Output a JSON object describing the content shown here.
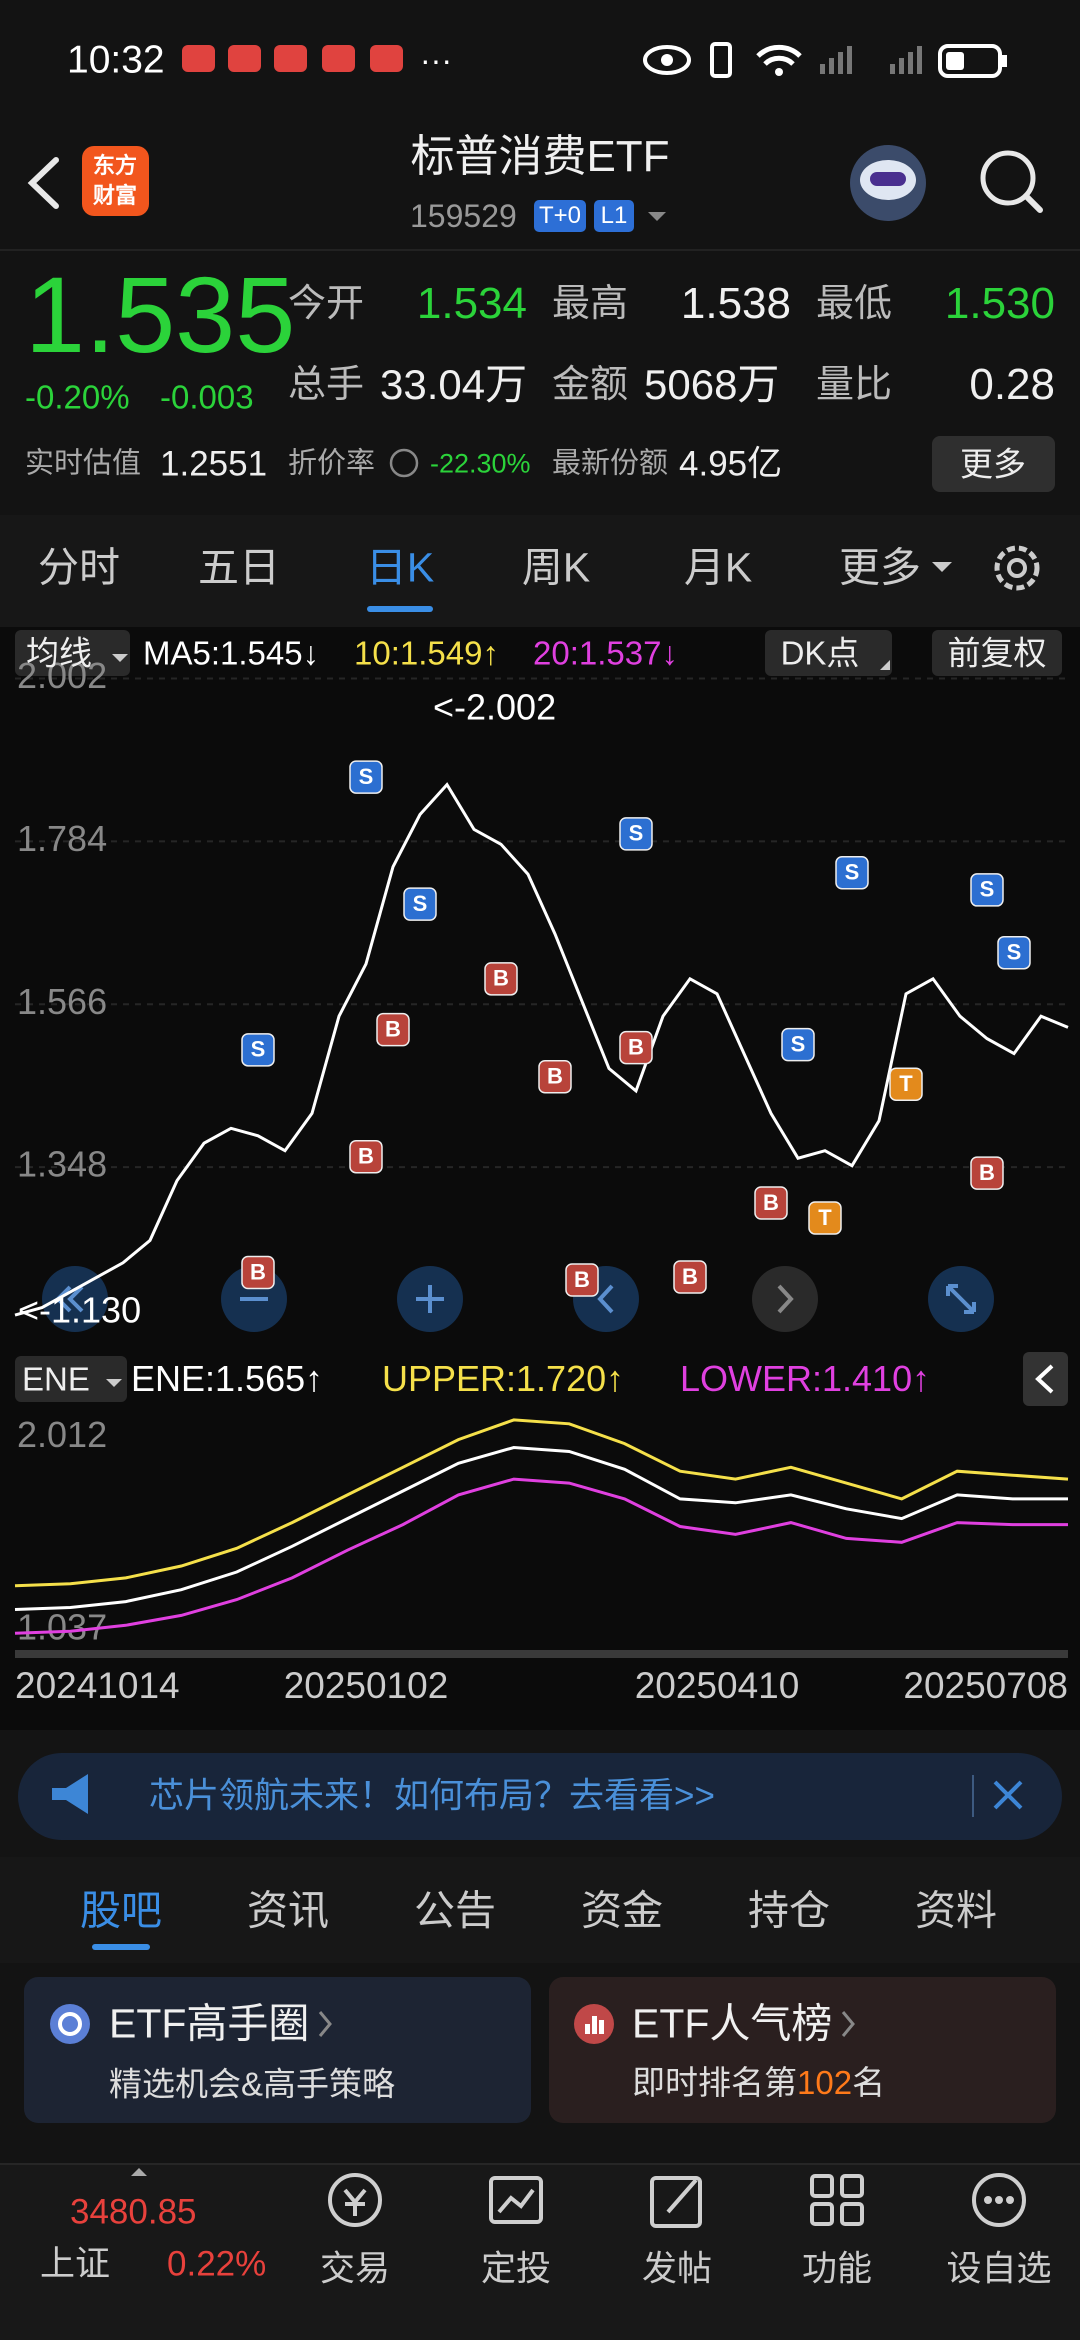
{
  "status_bar": {
    "time": "10:32",
    "more": "···"
  },
  "header": {
    "logo": [
      "东方",
      "财富"
    ],
    "title": "标普消费ETF",
    "code": "159529",
    "badges": [
      "T+0",
      "L1"
    ]
  },
  "quote": {
    "price": "1.535",
    "change_pct": "-0.20%",
    "change": "-0.003",
    "stats": [
      {
        "label": "今开",
        "value": "1.534"
      },
      {
        "label": "最高",
        "value": "1.538"
      },
      {
        "label": "最低",
        "value": "1.530"
      },
      {
        "label": "总手",
        "value": "33.04万"
      },
      {
        "label": "金额",
        "value": "5068万"
      },
      {
        "label": "量比",
        "value": "0.28"
      }
    ],
    "extra": [
      {
        "label": "实时估值",
        "value": "1.2551"
      },
      {
        "label": "折价率",
        "value": "-22.30%"
      },
      {
        "label": "最新份额",
        "value": "4.95亿"
      }
    ],
    "more_button": "更多"
  },
  "period_tabs": {
    "items": [
      "分时",
      "五日",
      "日K",
      "周K",
      "月K",
      "更多"
    ],
    "active": 2
  },
  "chart_toolbar": {
    "indicator": "均线",
    "ma5": "MA5:1.545↓",
    "ma10": "10:1.549↑",
    "ma20": "20:1.537↓",
    "dk": "DK点",
    "adjust": "前复权"
  },
  "ene_toolbar": {
    "indicator": "ENE",
    "ene": "ENE:1.565↑",
    "upper": "UPPER:1.720↑",
    "lower": "LOWER:1.410↑"
  },
  "chart_data": [
    {
      "type": "line",
      "categories": [
        "20241014",
        null,
        null,
        null,
        null,
        null,
        null,
        null,
        null,
        null,
        null,
        null,
        null,
        "20250102",
        null,
        null,
        null,
        null,
        null,
        null,
        null,
        null,
        null,
        null,
        null,
        null,
        "20250410",
        null,
        null,
        null,
        null,
        null,
        null,
        null,
        null,
        null,
        null,
        null,
        null,
        "20250708"
      ],
      "values": [
        1.15,
        1.16,
        1.18,
        1.2,
        1.22,
        1.25,
        1.33,
        1.38,
        1.4,
        1.39,
        1.37,
        1.42,
        1.55,
        1.62,
        1.75,
        1.82,
        1.86,
        1.8,
        1.78,
        1.74,
        1.66,
        1.57,
        1.48,
        1.45,
        1.55,
        1.6,
        1.58,
        1.5,
        1.42,
        1.36,
        1.37,
        1.35,
        1.41,
        1.58,
        1.6,
        1.55,
        1.52,
        1.5,
        1.55,
        1.535
      ],
      "color": "#ffffff",
      "ylim": [
        1.11,
        2.02
      ],
      "yticks": [
        2.002,
        1.784,
        1.566,
        1.348
      ],
      "grid": true,
      "annotations": [
        "<-2.002",
        "<-1.130"
      ],
      "signal_colors": {
        "S": "#2c6fd1",
        "B": "#b8433a",
        "T": "#e38a1c"
      },
      "signals": [
        {
          "label": "S",
          "index": 13,
          "value": 1.87
        },
        {
          "label": "S",
          "index": 15,
          "value": 1.7
        },
        {
          "label": "S",
          "index": 9,
          "value": 1.505
        },
        {
          "label": "S",
          "index": 23,
          "value": 1.794
        },
        {
          "label": "S",
          "index": 29,
          "value": 1.512
        },
        {
          "label": "S",
          "index": 31,
          "value": 1.742
        },
        {
          "label": "S",
          "index": 36,
          "value": 1.719
        },
        {
          "label": "S",
          "index": 37,
          "value": 1.635
        },
        {
          "label": "B",
          "index": 13,
          "value": 1.362
        },
        {
          "label": "B",
          "index": 14,
          "value": 1.532
        },
        {
          "label": "B",
          "index": 9,
          "value": 1.207
        },
        {
          "label": "B",
          "index": 18,
          "value": 1.6
        },
        {
          "label": "B",
          "index": 20,
          "value": 1.469
        },
        {
          "label": "B",
          "index": 21,
          "value": 1.197
        },
        {
          "label": "B",
          "index": 25,
          "value": 1.201
        },
        {
          "label": "B",
          "index": 23,
          "value": 1.508
        },
        {
          "label": "B",
          "index": 28,
          "value": 1.3
        },
        {
          "label": "T",
          "index": 30,
          "value": 1.28
        },
        {
          "label": "T",
          "index": 33,
          "value": 1.459
        },
        {
          "label": "B",
          "index": 36,
          "value": 1.34
        }
      ]
    },
    {
      "type": "line",
      "series": [
        {
          "color": "#f5e04a",
          "values": [
            1.26,
            1.27,
            1.3,
            1.36,
            1.45,
            1.58,
            1.72,
            1.86,
            2.0,
            2.1,
            2.08,
            1.98,
            1.84,
            1.8,
            1.86,
            1.78,
            1.7,
            1.84,
            1.82,
            1.8
          ]
        },
        {
          "color": "#ffffff",
          "values": [
            1.14,
            1.15,
            1.18,
            1.24,
            1.33,
            1.46,
            1.6,
            1.74,
            1.88,
            1.96,
            1.94,
            1.85,
            1.7,
            1.68,
            1.72,
            1.65,
            1.6,
            1.72,
            1.7,
            1.7
          ]
        },
        {
          "color": "#e040e0",
          "values": [
            1.02,
            1.03,
            1.06,
            1.11,
            1.19,
            1.3,
            1.44,
            1.57,
            1.72,
            1.8,
            1.78,
            1.7,
            1.56,
            1.52,
            1.58,
            1.5,
            1.48,
            1.58,
            1.57,
            1.57
          ]
        }
      ],
      "ylim": [
        0.94,
        2.15
      ],
      "yticks": [
        2.012,
        1.037
      ]
    }
  ],
  "banner": {
    "text": "芯片领航未来！如何布局？去看看>>"
  },
  "section_tabs": {
    "items": [
      "股吧",
      "资讯",
      "公告",
      "资金",
      "持仓",
      "资料"
    ],
    "active": 0
  },
  "cards": [
    {
      "title": "ETF高手圈",
      "subtitle": "精选机会&高手策略"
    },
    {
      "title": "ETF人气榜",
      "subtitle": [
        "即时排名第",
        "102",
        "名"
      ]
    }
  ],
  "bottom_nav": {
    "index": {
      "value": "3480.85",
      "name": "上证",
      "change": "0.22%"
    },
    "items": [
      "交易",
      "定投",
      "发帖",
      "功能",
      "设自选"
    ]
  }
}
